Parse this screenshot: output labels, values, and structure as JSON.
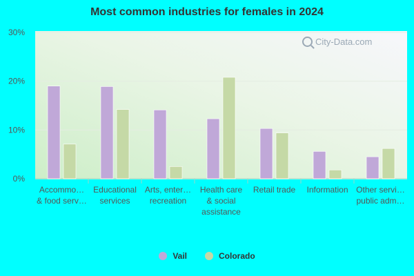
{
  "chart_data": {
    "type": "bar",
    "title": "Most common industries for females in 2024",
    "categories": [
      [
        "Accommo…",
        "& food serv…"
      ],
      [
        "Educational",
        "services"
      ],
      [
        "Arts, enter…",
        "recreation"
      ],
      [
        "Health care",
        "& social",
        "assistance"
      ],
      [
        "Retail trade"
      ],
      [
        "Information"
      ],
      [
        "Other servi…",
        "public adm…"
      ]
    ],
    "series": [
      {
        "name": "Vail",
        "color": "#c0a8d8",
        "values": [
          19.0,
          18.9,
          14.1,
          12.3,
          10.3,
          5.6,
          4.5
        ]
      },
      {
        "name": "Colorado",
        "color": "#c5d9a6",
        "values": [
          7.1,
          14.2,
          2.5,
          20.8,
          9.4,
          1.8,
          6.2
        ]
      }
    ],
    "y_ticks": [
      "0%",
      "10%",
      "20%",
      "30%"
    ],
    "ylim": [
      0,
      30
    ],
    "grid": true,
    "legend_position": "bottom",
    "watermark": "City-Data.com"
  }
}
